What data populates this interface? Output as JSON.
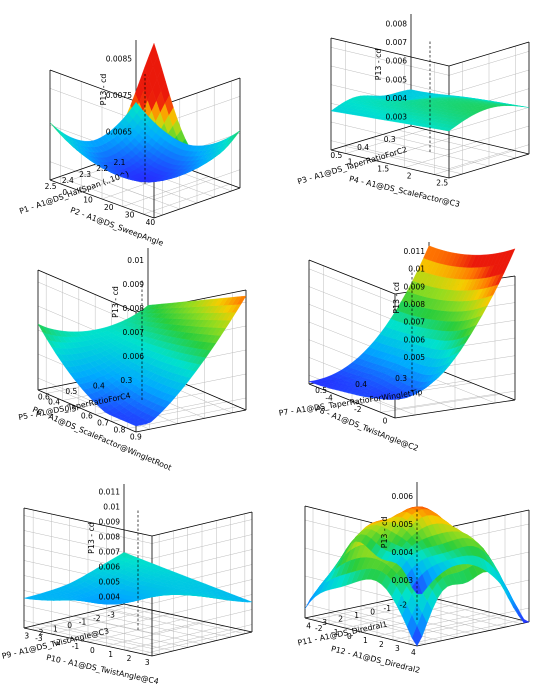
{
  "chart_data": [
    {
      "type": "surface",
      "zlabel": "P13 - cd",
      "xlabel": "P1 - A1@DS_HalfSpan (..10^)",
      "ylabel": "P2 - A1@DS_SweepAngle",
      "zticks": [
        "0.0065",
        "0.0075",
        "0.0085"
      ],
      "xticks": [
        "2.1",
        "2.2",
        "2.3",
        "2.4",
        "2.5"
      ],
      "yticks": [
        "0",
        "10",
        "20",
        "30",
        "40"
      ],
      "colors": {
        "low": "#1f3cff",
        "high": "#ff1a00"
      }
    },
    {
      "type": "surface",
      "zlabel": "P13 - cd",
      "xlabel": "P3 - A1@DS_TaperRatioForC2",
      "ylabel": "P4 - A1@DS_ScaleFactor@C3",
      "zticks": [
        "0.003",
        "0.004",
        "0.005",
        "0.006",
        "0.007",
        "0.008"
      ],
      "xticks": [
        "0.3",
        "0.4",
        "0.5"
      ],
      "yticks": [
        "1",
        "1.5",
        "2",
        "2.5"
      ],
      "colors": {
        "low": "#1f3cff",
        "high": "#ff1a00"
      }
    },
    {
      "type": "surface",
      "zlabel": "P13 - cd",
      "xlabel": "P5 - A1@DS_TaperRatioForC4",
      "ylabel": "P6 - A1@DS_ScaleFactor@WingletRoot",
      "zticks": [
        "0.006",
        "0.007",
        "0.008",
        "0.009",
        "0.01"
      ],
      "xticks": [
        "0.3",
        "0.4",
        "0.5",
        "0.6"
      ],
      "yticks": [
        "0.4",
        "0.5",
        "0.6",
        "0.7",
        "0.8",
        "0.9"
      ],
      "colors": {
        "low": "#1f3cff",
        "high": "#ff1a00"
      }
    },
    {
      "type": "surface",
      "zlabel": "P13 - cd",
      "xlabel": "P7 - A1@DS_TaperRatioForWingletTip",
      "ylabel": "P8 - A1@DS_TwistAngle@C2",
      "zticks": [
        "0.005",
        "0.006",
        "0.007",
        "0.008",
        "0.009",
        "0.01",
        "0.011"
      ],
      "xticks": [
        "0.3",
        "0.4",
        "0.5"
      ],
      "yticks": [
        "-4",
        "-2",
        "0"
      ],
      "colors": {
        "low": "#1f3cff",
        "high": "#ff1a00"
      }
    },
    {
      "type": "surface",
      "zlabel": "P13 - cd",
      "xlabel": "P9 - A1@DS_TwistAngle@C3",
      "ylabel": "P10 - A1@DS_TwistAngle@C4",
      "zticks": [
        "0.004",
        "0.005",
        "0.006",
        "0.007",
        "0.008",
        "0.009",
        "0.01",
        "0.011"
      ],
      "xticks": [
        "-3",
        "-2",
        "-1",
        "0",
        "1",
        "2",
        "3"
      ],
      "yticks": [
        "-3",
        "-2",
        "-1",
        "0",
        "1",
        "2",
        "3"
      ],
      "colors": {
        "low": "#1f3cff",
        "high": "#ff1a00"
      }
    },
    {
      "type": "surface",
      "zlabel": "P13 - cd",
      "xlabel": "P11 - A1@DS_Diredral1",
      "ylabel": "P12 - A1@DS_Diredral2",
      "zticks": [
        "0.003",
        "0.004",
        "0.005",
        "0.006"
      ],
      "xticks": [
        "-2",
        "-1",
        "0",
        "1",
        "2",
        "3",
        "4"
      ],
      "yticks": [
        "-2",
        "-1",
        "0",
        "1",
        "2",
        "3",
        "4"
      ],
      "colors": {
        "low": "#1f3cff",
        "high": "#ff1a00"
      }
    }
  ]
}
